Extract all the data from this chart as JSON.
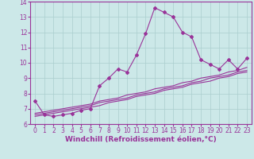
{
  "xlabel": "Windchill (Refroidissement éolien,°C)",
  "bg_color": "#cce8e8",
  "grid_color": "#aacece",
  "line_color": "#993399",
  "x_data": [
    0,
    1,
    2,
    3,
    4,
    5,
    6,
    7,
    8,
    9,
    10,
    11,
    12,
    13,
    14,
    15,
    16,
    17,
    18,
    19,
    20,
    21,
    22,
    23
  ],
  "y_main": [
    7.5,
    6.6,
    6.5,
    6.6,
    6.7,
    6.9,
    7.0,
    8.5,
    9.0,
    9.6,
    9.4,
    10.5,
    11.9,
    13.6,
    13.3,
    13.0,
    12.0,
    11.7,
    10.2,
    9.9,
    9.6,
    10.2,
    9.6,
    10.3
  ],
  "y_line1": [
    6.7,
    6.8,
    6.9,
    7.0,
    7.1,
    7.2,
    7.3,
    7.5,
    7.6,
    7.7,
    7.9,
    8.0,
    8.1,
    8.3,
    8.4,
    8.5,
    8.7,
    8.8,
    9.0,
    9.1,
    9.2,
    9.4,
    9.5,
    9.7
  ],
  "y_line2": [
    6.6,
    6.7,
    6.8,
    6.9,
    7.0,
    7.1,
    7.2,
    7.4,
    7.5,
    7.6,
    7.7,
    7.9,
    8.0,
    8.1,
    8.3,
    8.4,
    8.5,
    8.7,
    8.8,
    9.0,
    9.1,
    9.2,
    9.4,
    9.5
  ],
  "y_line3": [
    6.5,
    6.6,
    6.7,
    6.8,
    6.9,
    7.0,
    7.1,
    7.2,
    7.4,
    7.5,
    7.6,
    7.8,
    7.9,
    8.0,
    8.2,
    8.3,
    8.4,
    8.6,
    8.7,
    8.8,
    9.0,
    9.1,
    9.3,
    9.4
  ],
  "ylim": [
    6.0,
    14.0
  ],
  "xlim": [
    -0.5,
    23.5
  ],
  "yticks": [
    6,
    7,
    8,
    9,
    10,
    11,
    12,
    13,
    14
  ],
  "xticks": [
    0,
    1,
    2,
    3,
    4,
    5,
    6,
    7,
    8,
    9,
    10,
    11,
    12,
    13,
    14,
    15,
    16,
    17,
    18,
    19,
    20,
    21,
    22,
    23
  ],
  "tick_label_size": 5.5,
  "xlabel_size": 6.5,
  "marker": "D",
  "marker_size": 2.0,
  "linewidth": 0.8
}
